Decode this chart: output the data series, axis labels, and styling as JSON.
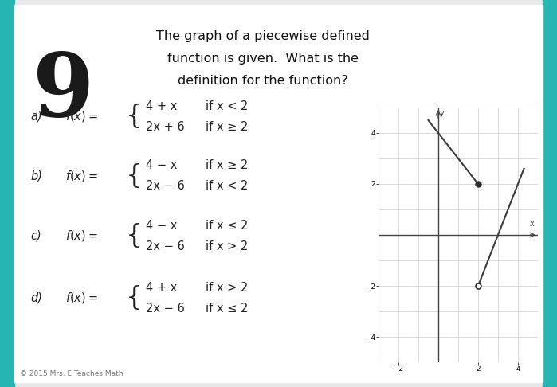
{
  "title_line1": "The graph of a piecewise defined",
  "title_line2": "function is given.  What is the",
  "title_line3": "definition for the function?",
  "title_fontsize": 11.5,
  "bg_color": "#e8e8e8",
  "card_bg": "#ffffff",
  "teal_color": "#26b5b0",
  "number_label": "9",
  "number_fontsize": 80,
  "graph": {
    "xlim": [
      -3,
      5
    ],
    "ylim": [
      -5,
      5
    ],
    "xticks": [
      -2,
      2,
      4
    ],
    "yticks": [
      -4,
      -2,
      2,
      4
    ],
    "grid_color": "#cccccc",
    "axis_color": "#444444",
    "line_color": "#3c3c3c",
    "piece1_x_start": -0.5,
    "piece1_x_end": 2.0,
    "piece2_x_start": 2.0,
    "piece2_x_end": 4.3,
    "dot_filled_x": 2,
    "dot_filled_y": 2,
    "dot_open_x": 2,
    "dot_open_y": -2,
    "dot_color": "#2c2c2c",
    "dot_size": 5
  },
  "options": [
    {
      "label": "a)",
      "piece1_expr": "4 + x",
      "piece1_cond": "if x < 2",
      "piece2_expr": "2x + 6",
      "piece2_cond": "if x ≥ 2"
    },
    {
      "label": "b)",
      "piece1_expr": "4 − x",
      "piece1_cond": "if x ≥ 2",
      "piece2_expr": "2x − 6",
      "piece2_cond": "if x < 2"
    },
    {
      "label": "c)",
      "piece1_expr": "4 − x",
      "piece1_cond": "if x ≤ 2",
      "piece2_expr": "2x − 6",
      "piece2_cond": "if x > 2"
    },
    {
      "label": "d)",
      "piece1_expr": "4 + x",
      "piece1_cond": "if x > 2",
      "piece2_expr": "2x − 6",
      "piece2_cond": "if x ≤ 2"
    }
  ],
  "option_text_color": "#222222",
  "option_fontsize": 10.5,
  "label_fontsize": 10.5,
  "copyright": "© 2015 Mrs. E Teaches Math",
  "copyright_fontsize": 6.5
}
